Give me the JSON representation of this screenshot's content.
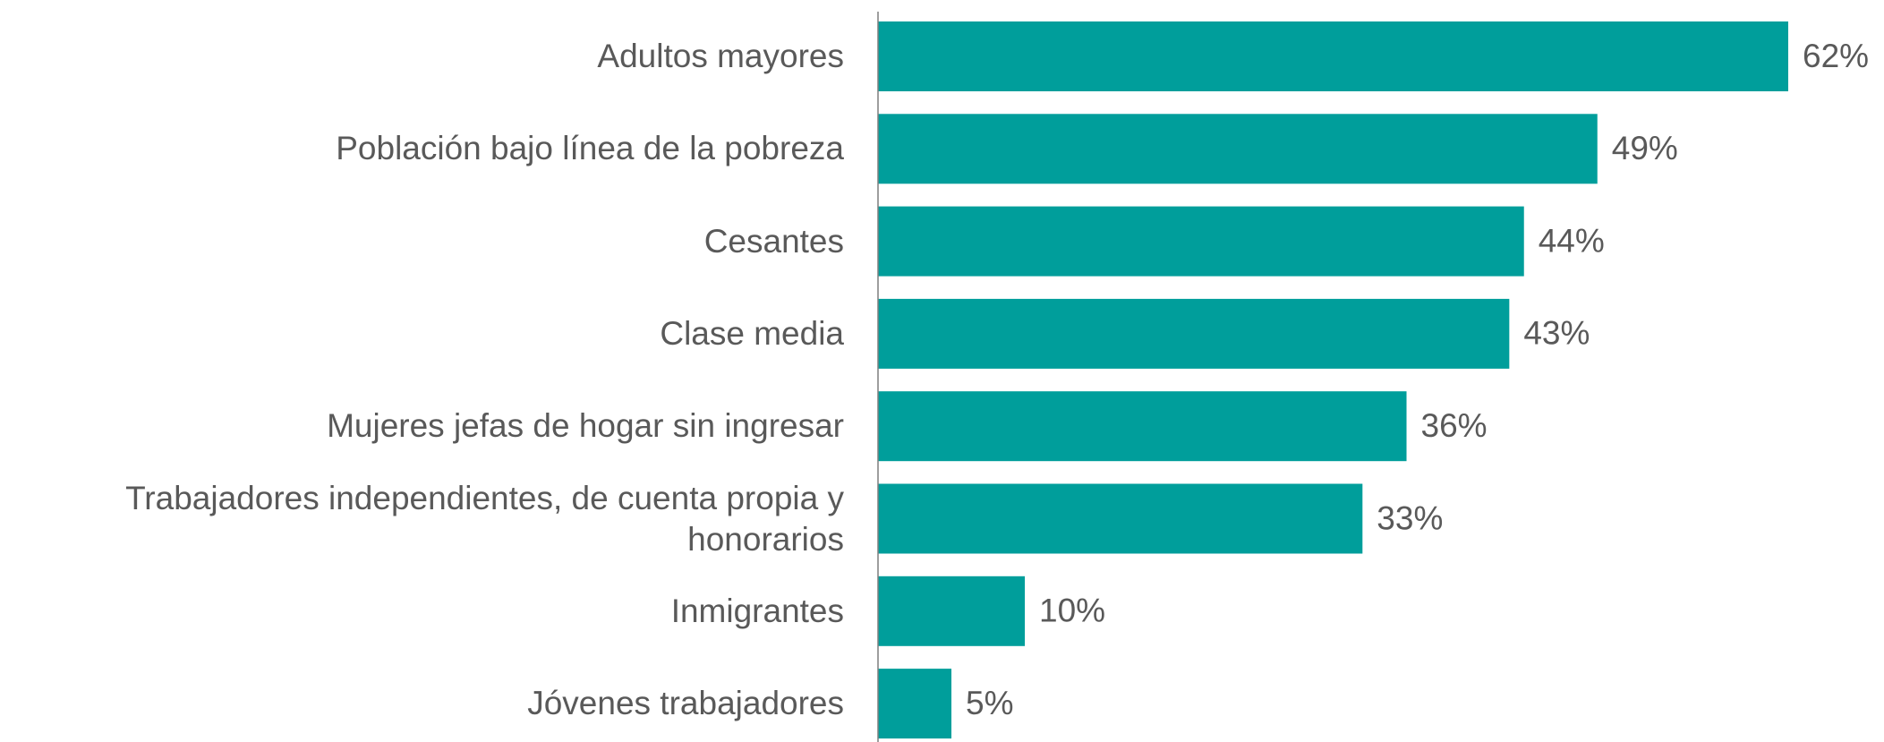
{
  "chart_data": {
    "type": "bar",
    "orientation": "horizontal",
    "color": "#009e9b",
    "categories": [
      "Adultos mayores",
      "Población bajo línea de la pobreza",
      "Cesantes",
      "Clase media",
      "Mujeres jefas de hogar sin ingresar",
      "Trabajadores independientes, de cuenta propia y honorarios",
      "Inmigrantes",
      "Jóvenes trabajadores"
    ],
    "values": [
      62,
      49,
      44,
      43,
      36,
      33,
      10,
      5
    ],
    "value_labels": [
      "62%",
      "49%",
      "44%",
      "43%",
      "36%",
      "33%",
      "10%",
      "5%"
    ]
  }
}
